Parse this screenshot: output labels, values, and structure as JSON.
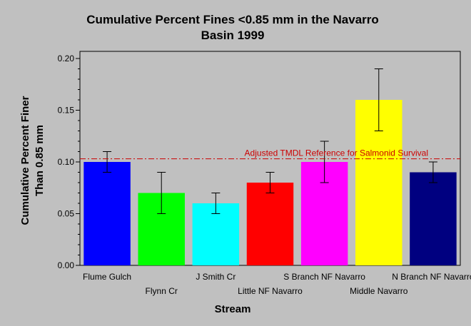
{
  "chart_data": {
    "type": "bar",
    "title_lines": [
      "Cumulative Percent Fines <0.85 mm in the Navarro",
      "Basin 1999"
    ],
    "xlabel": "Stream",
    "ylabel_lines": [
      "Cumulative Percent Finer",
      "Than 0.85 mm"
    ],
    "ylim": [
      0,
      0.2
    ],
    "yticks": [
      0.0,
      0.05,
      0.1,
      0.15,
      0.2
    ],
    "ytick_labels": [
      "0.00",
      "0.05",
      "0.10",
      "0.15",
      "0.20"
    ],
    "grid": false,
    "categories": [
      "Flume Gulch",
      "Flynn Cr",
      "J Smith Cr",
      "Little NF Navarro",
      "S Branch NF Navarro",
      "Middle Navarro",
      "N Branch NF Navarro"
    ],
    "values": [
      0.1,
      0.07,
      0.06,
      0.08,
      0.1,
      0.16,
      0.09
    ],
    "error_low": [
      0.09,
      0.05,
      0.05,
      0.07,
      0.08,
      0.13,
      0.08
    ],
    "error_high": [
      0.11,
      0.09,
      0.07,
      0.09,
      0.12,
      0.19,
      0.1
    ],
    "colors": [
      "#0000ff",
      "#00ff00",
      "#00ffff",
      "#ff0000",
      "#ff00ff",
      "#ffff00",
      "#000080"
    ],
    "reference_line": {
      "value": 0.103,
      "label": "Adjusted TMDL Reference for Salmonid Survival",
      "color": "#cc0000"
    }
  }
}
